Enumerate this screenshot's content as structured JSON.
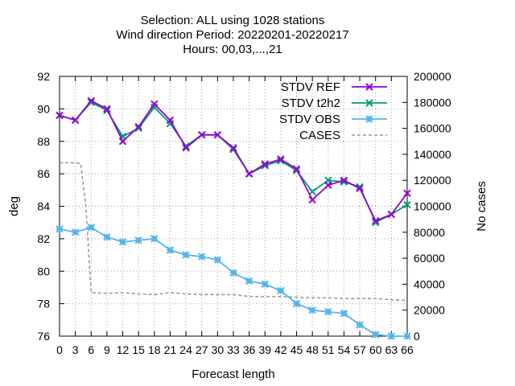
{
  "chart_data": {
    "type": "line",
    "title": [
      "Selection: ALL using  1028 stations",
      "Wind direction   Period: 20220201-20220217",
      "Hours:  00,03,...,21"
    ],
    "xlabel": "Forecast length",
    "ylabel": "deg",
    "y2label": "No cases",
    "xlim": [
      0,
      66
    ],
    "ylim": [
      76,
      92
    ],
    "y2lim": [
      0,
      200000
    ],
    "x_ticks": [
      0,
      3,
      6,
      9,
      12,
      15,
      18,
      21,
      24,
      27,
      30,
      33,
      36,
      39,
      42,
      45,
      48,
      51,
      54,
      57,
      60,
      63,
      66
    ],
    "y_ticks": [
      76,
      78,
      80,
      82,
      84,
      86,
      88,
      90,
      92
    ],
    "y2_ticks": [
      0,
      20000,
      40000,
      60000,
      80000,
      100000,
      120000,
      140000,
      160000,
      180000,
      200000
    ],
    "x": [
      0,
      3,
      6,
      9,
      12,
      15,
      18,
      21,
      24,
      27,
      30,
      33,
      36,
      39,
      42,
      45,
      48,
      51,
      54,
      57,
      60,
      63,
      66
    ],
    "grid": true,
    "legend_position": "top-right",
    "series": [
      {
        "name": "STDV REF",
        "axis": "y",
        "color": "#9400d3",
        "marker": "x",
        "values": [
          89.6,
          89.3,
          90.5,
          90.0,
          88.0,
          88.9,
          90.3,
          89.3,
          87.6,
          88.4,
          88.4,
          87.6,
          86.0,
          86.6,
          86.9,
          86.3,
          84.4,
          85.3,
          85.6,
          85.1,
          83.1,
          83.5,
          84.8
        ]
      },
      {
        "name": "STDV t2h2",
        "axis": "y",
        "color": "#009e73",
        "marker": "x",
        "values": [
          89.6,
          89.3,
          90.4,
          89.9,
          88.3,
          88.8,
          90.1,
          89.1,
          87.7,
          88.4,
          88.4,
          87.5,
          86.0,
          86.5,
          86.8,
          86.2,
          84.9,
          85.6,
          85.5,
          85.2,
          83.0,
          83.5,
          84.1
        ]
      },
      {
        "name": "STDV OBS",
        "axis": "y",
        "color": "#56b4e9",
        "marker": "asterisk",
        "values": [
          82.6,
          82.4,
          82.7,
          82.1,
          81.8,
          81.9,
          82.0,
          81.3,
          81.0,
          80.9,
          80.7,
          79.9,
          79.4,
          79.2,
          78.8,
          78.0,
          77.6,
          77.5,
          77.4,
          76.7,
          76.1,
          76.0,
          76.0
        ]
      },
      {
        "name": "CASES",
        "axis": "y2",
        "color": "#999999",
        "dash": true,
        "x": [
          0,
          3,
          4,
          5,
          6,
          9,
          12,
          15,
          18,
          21,
          24,
          27,
          30,
          33,
          36,
          39,
          42,
          45,
          48,
          51,
          54,
          57,
          60,
          63,
          66
        ],
        "values": [
          133500,
          133500,
          133000,
          100000,
          33500,
          33000,
          33500,
          32500,
          32000,
          33500,
          32500,
          32000,
          32000,
          32000,
          30500,
          30500,
          30500,
          30000,
          29500,
          29500,
          29000,
          29000,
          29000,
          28000,
          27500
        ]
      }
    ]
  }
}
